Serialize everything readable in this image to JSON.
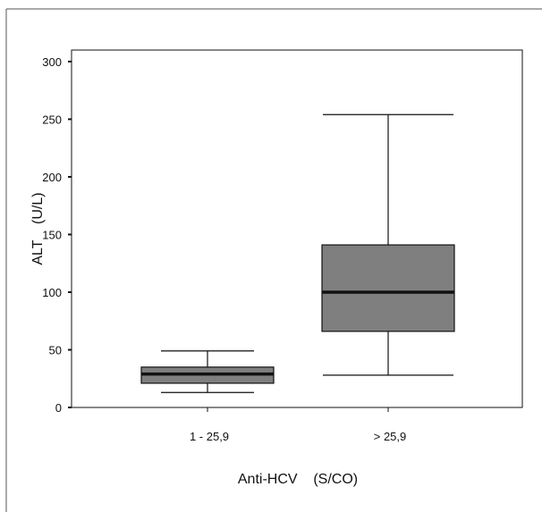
{
  "chart_data": {
    "type": "box",
    "title": "",
    "xlabel": "Anti-HCV    (S/CO)",
    "ylabel": "ALT    (U/L)",
    "ylim": [
      0,
      310
    ],
    "yticks": [
      0,
      50,
      100,
      150,
      200,
      250,
      300
    ],
    "y_tick_labels": [
      "0",
      "50",
      "100",
      "150",
      "200",
      "250",
      "300"
    ],
    "categories": [
      "1 - 25,9",
      "> 25,9"
    ],
    "boxes": [
      {
        "category": "1 - 25,9",
        "min": 13,
        "q1": 21,
        "median": 29,
        "q3": 35,
        "max": 49
      },
      {
        "category": "> 25,9",
        "min": 28,
        "q1": 66,
        "median": 100,
        "q3": 141,
        "max": 254
      }
    ],
    "box_color": "#7f7f7f",
    "median_color": "#111111",
    "grid": false,
    "legend": "none"
  }
}
